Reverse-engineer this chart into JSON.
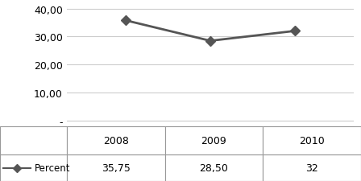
{
  "years": [
    "2008",
    "2009",
    "2010"
  ],
  "year_vals": [
    2008,
    2009,
    2010
  ],
  "values": [
    35.75,
    28.5,
    32
  ],
  "yticks": [
    0,
    10,
    20,
    30,
    40
  ],
  "ytick_labels": [
    "-",
    "10,00",
    "20,00",
    "30,00",
    "40,00"
  ],
  "ylim": [
    -2,
    42
  ],
  "legend_label": "Percent",
  "legend_values": [
    "35,75",
    "28,50",
    "32"
  ],
  "line_color": "#555555",
  "marker_color": "#555555",
  "background_color": "#ffffff",
  "grid_color": "#cccccc",
  "table_edge_color": "#999999"
}
